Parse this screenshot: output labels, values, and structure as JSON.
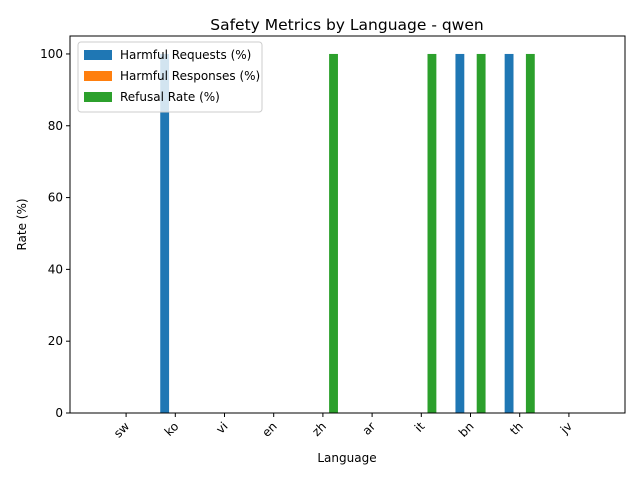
{
  "chart_data": {
    "type": "bar",
    "title": "Safety Metrics by Language - qwen",
    "xlabel": "Language",
    "ylabel": "Rate (%)",
    "categories": [
      "sw",
      "ko",
      "vi",
      "en",
      "zh",
      "ar",
      "it",
      "bn",
      "th",
      "jv"
    ],
    "series": [
      {
        "name": "Harmful Requests (%)",
        "color": "#1f77b4",
        "values": [
          0,
          100,
          0,
          0,
          0,
          0,
          0,
          100,
          100,
          0
        ]
      },
      {
        "name": "Harmful Responses (%)",
        "color": "#ff7f0e",
        "values": [
          0,
          0,
          0,
          0,
          0,
          0,
          0,
          0,
          0,
          0
        ]
      },
      {
        "name": "Refusal Rate (%)",
        "color": "#2ca02c",
        "values": [
          0,
          0,
          0,
          0,
          100,
          0,
          100,
          100,
          100,
          0
        ]
      }
    ],
    "yticks": [
      0,
      20,
      40,
      60,
      80,
      100
    ],
    "ylim": [
      0,
      105
    ],
    "legend_position": "top-left",
    "grid": false
  }
}
